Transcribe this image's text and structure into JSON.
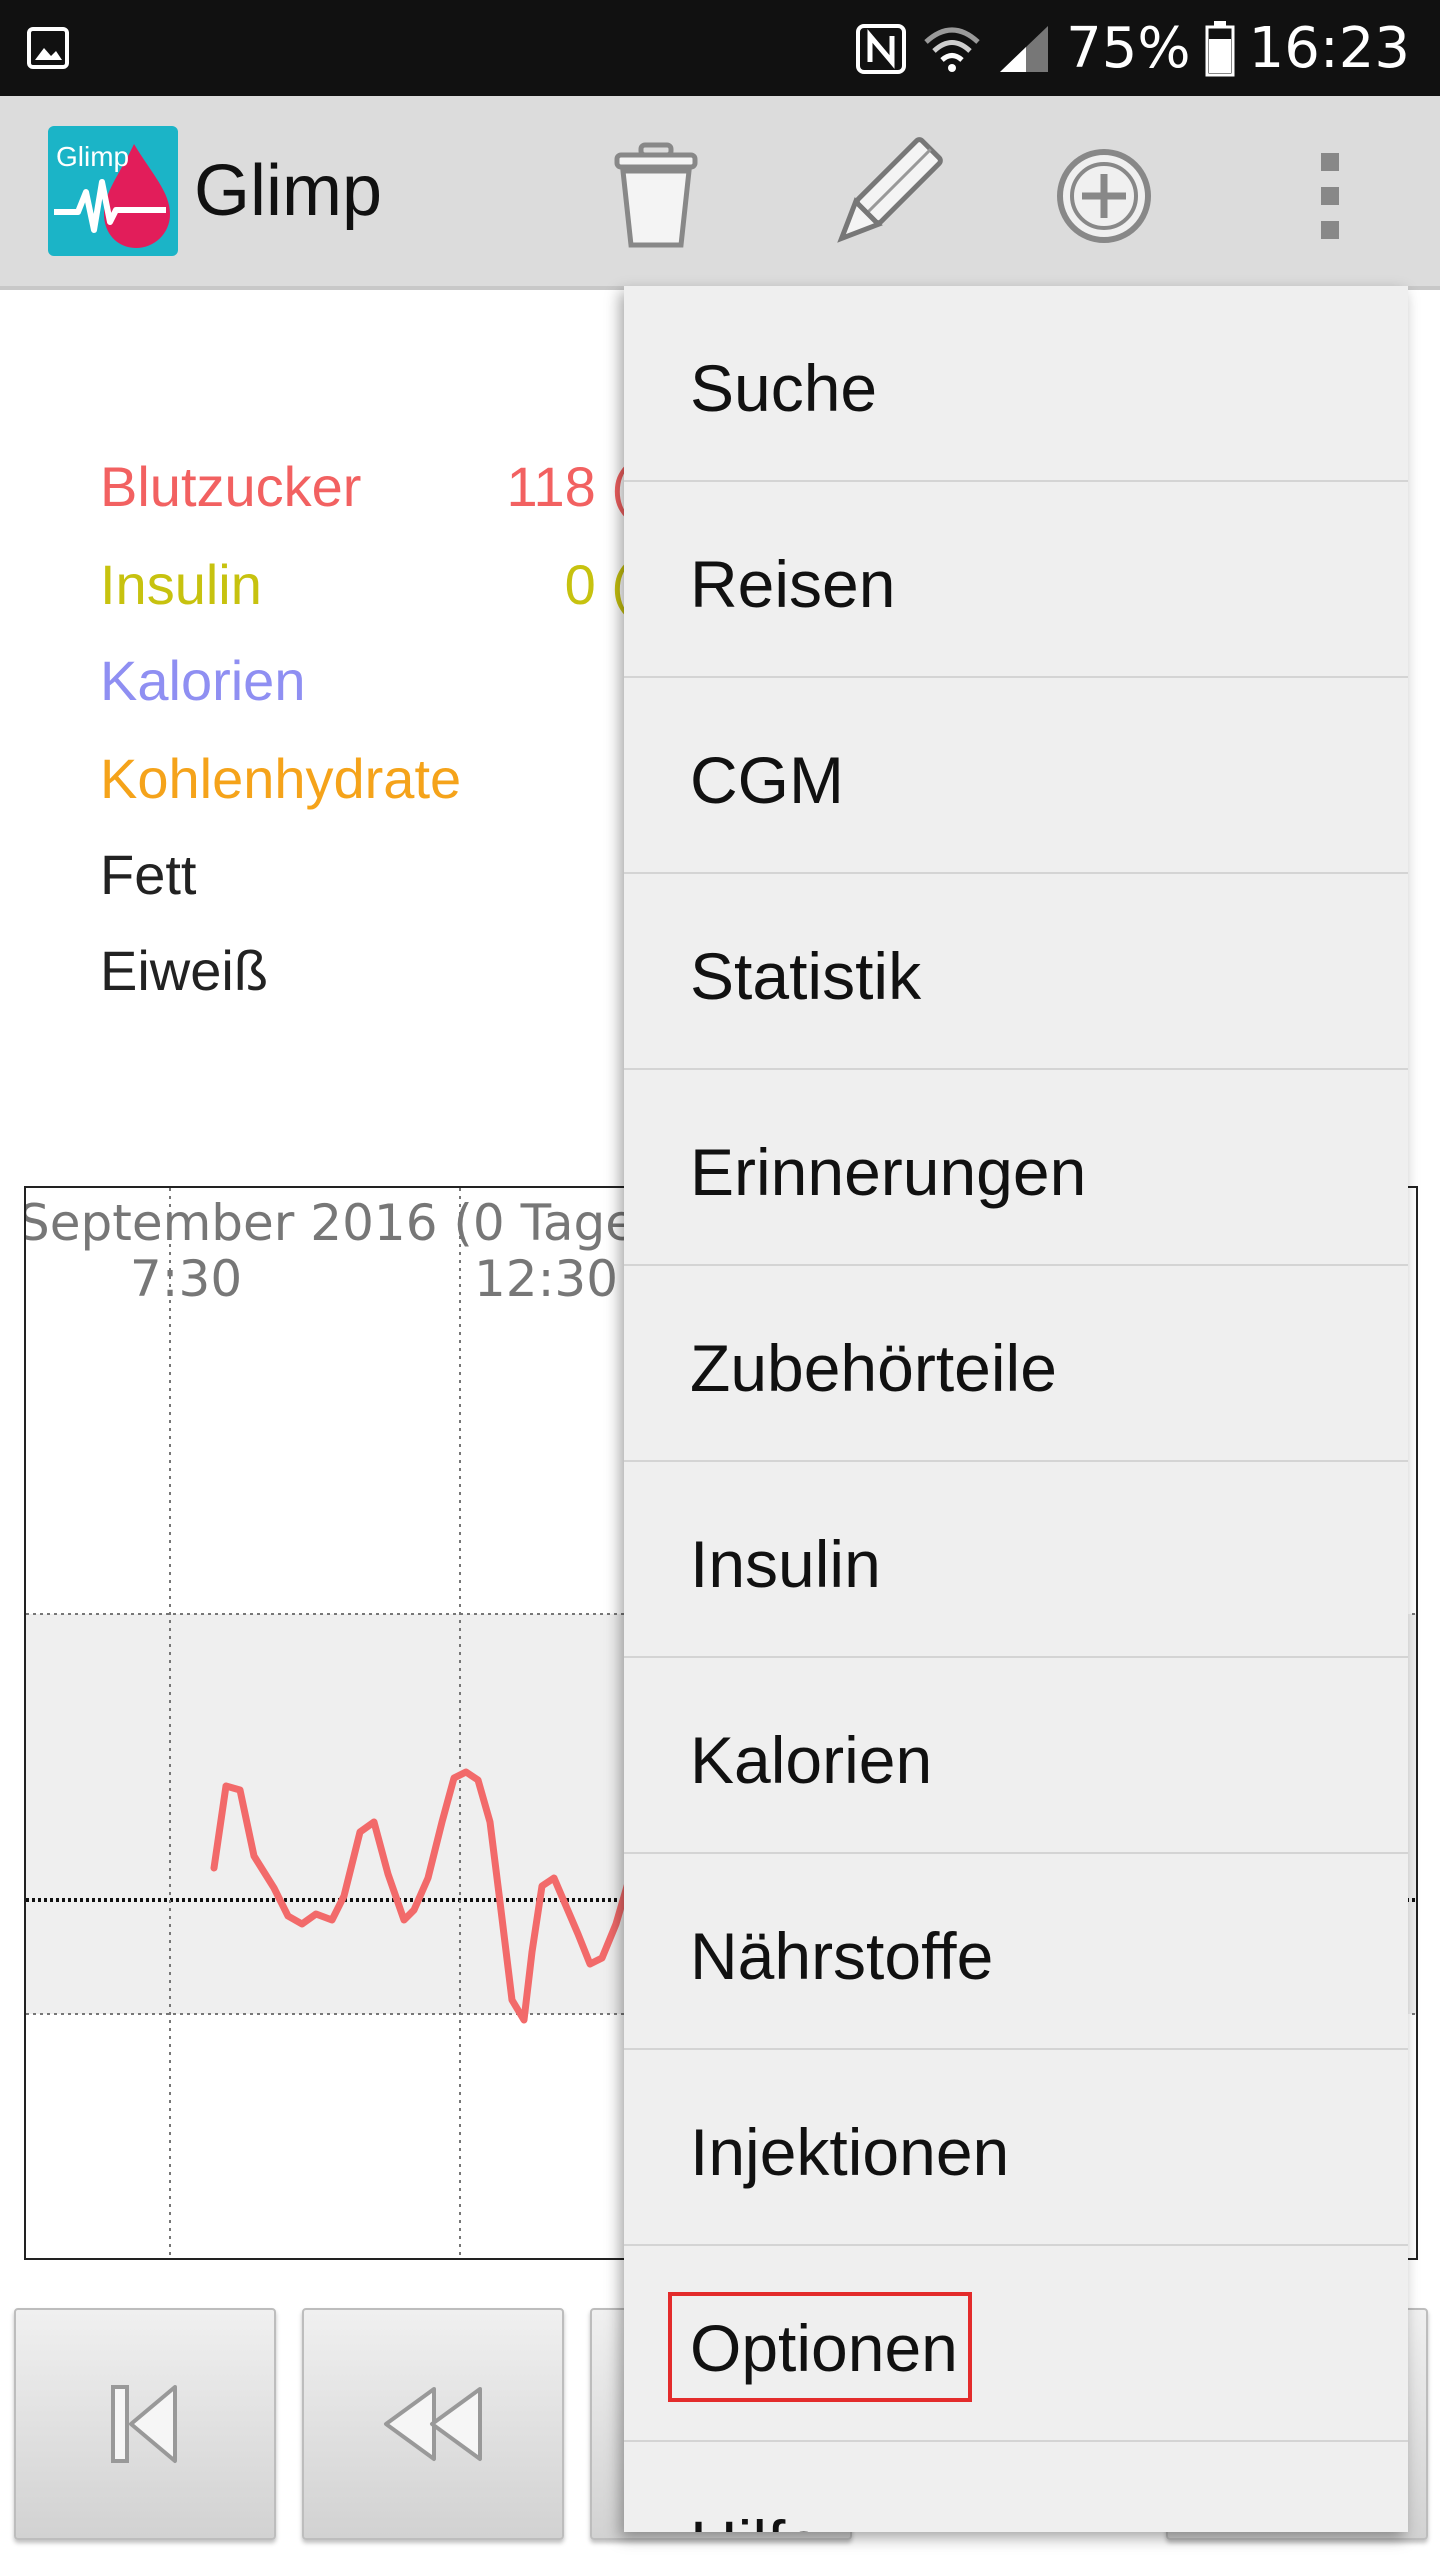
{
  "status_bar": {
    "battery_percent": "75%",
    "time": "16:23",
    "icons": [
      "image-icon",
      "nfc-icon",
      "wifi-icon",
      "signal-icon",
      "battery-icon"
    ]
  },
  "app_bar": {
    "logo_text": "Glimp",
    "title": "Glimp",
    "icons": [
      "trash-icon",
      "pencil-icon",
      "add-circle-icon",
      "overflow-menu-icon"
    ]
  },
  "values": [
    {
      "label": "Blutzucker",
      "value": "118 (",
      "color": "#f26161"
    },
    {
      "label": "Insulin",
      "value": "0 (",
      "color": "#c7c20f"
    },
    {
      "label": "Kalorien",
      "value": "",
      "color": "#8f8ff2"
    },
    {
      "label": "Kohlenhydrate",
      "value": "",
      "color": "#f5a31a"
    },
    {
      "label": "Fett",
      "value": "",
      "color": "#222222"
    },
    {
      "label": "Eiweiß",
      "value": "",
      "color": "#222222"
    }
  ],
  "chart": {
    "date_label": "September 2016 (0 Tage",
    "time_labels": [
      "7:30",
      "12:30"
    ],
    "line_color": "#f26a6a"
  },
  "menu": {
    "items": [
      "Suche",
      "Reisen",
      "CGM",
      "Statistik",
      "Erinnerungen",
      "Zubehörteile",
      "Insulin",
      "Kalorien",
      "Nährstoffe",
      "Injektionen",
      "Optionen",
      "Hilfe"
    ],
    "highlighted": "Optionen"
  },
  "nav_buttons": [
    "first-page-icon",
    "rewind-icon"
  ]
}
